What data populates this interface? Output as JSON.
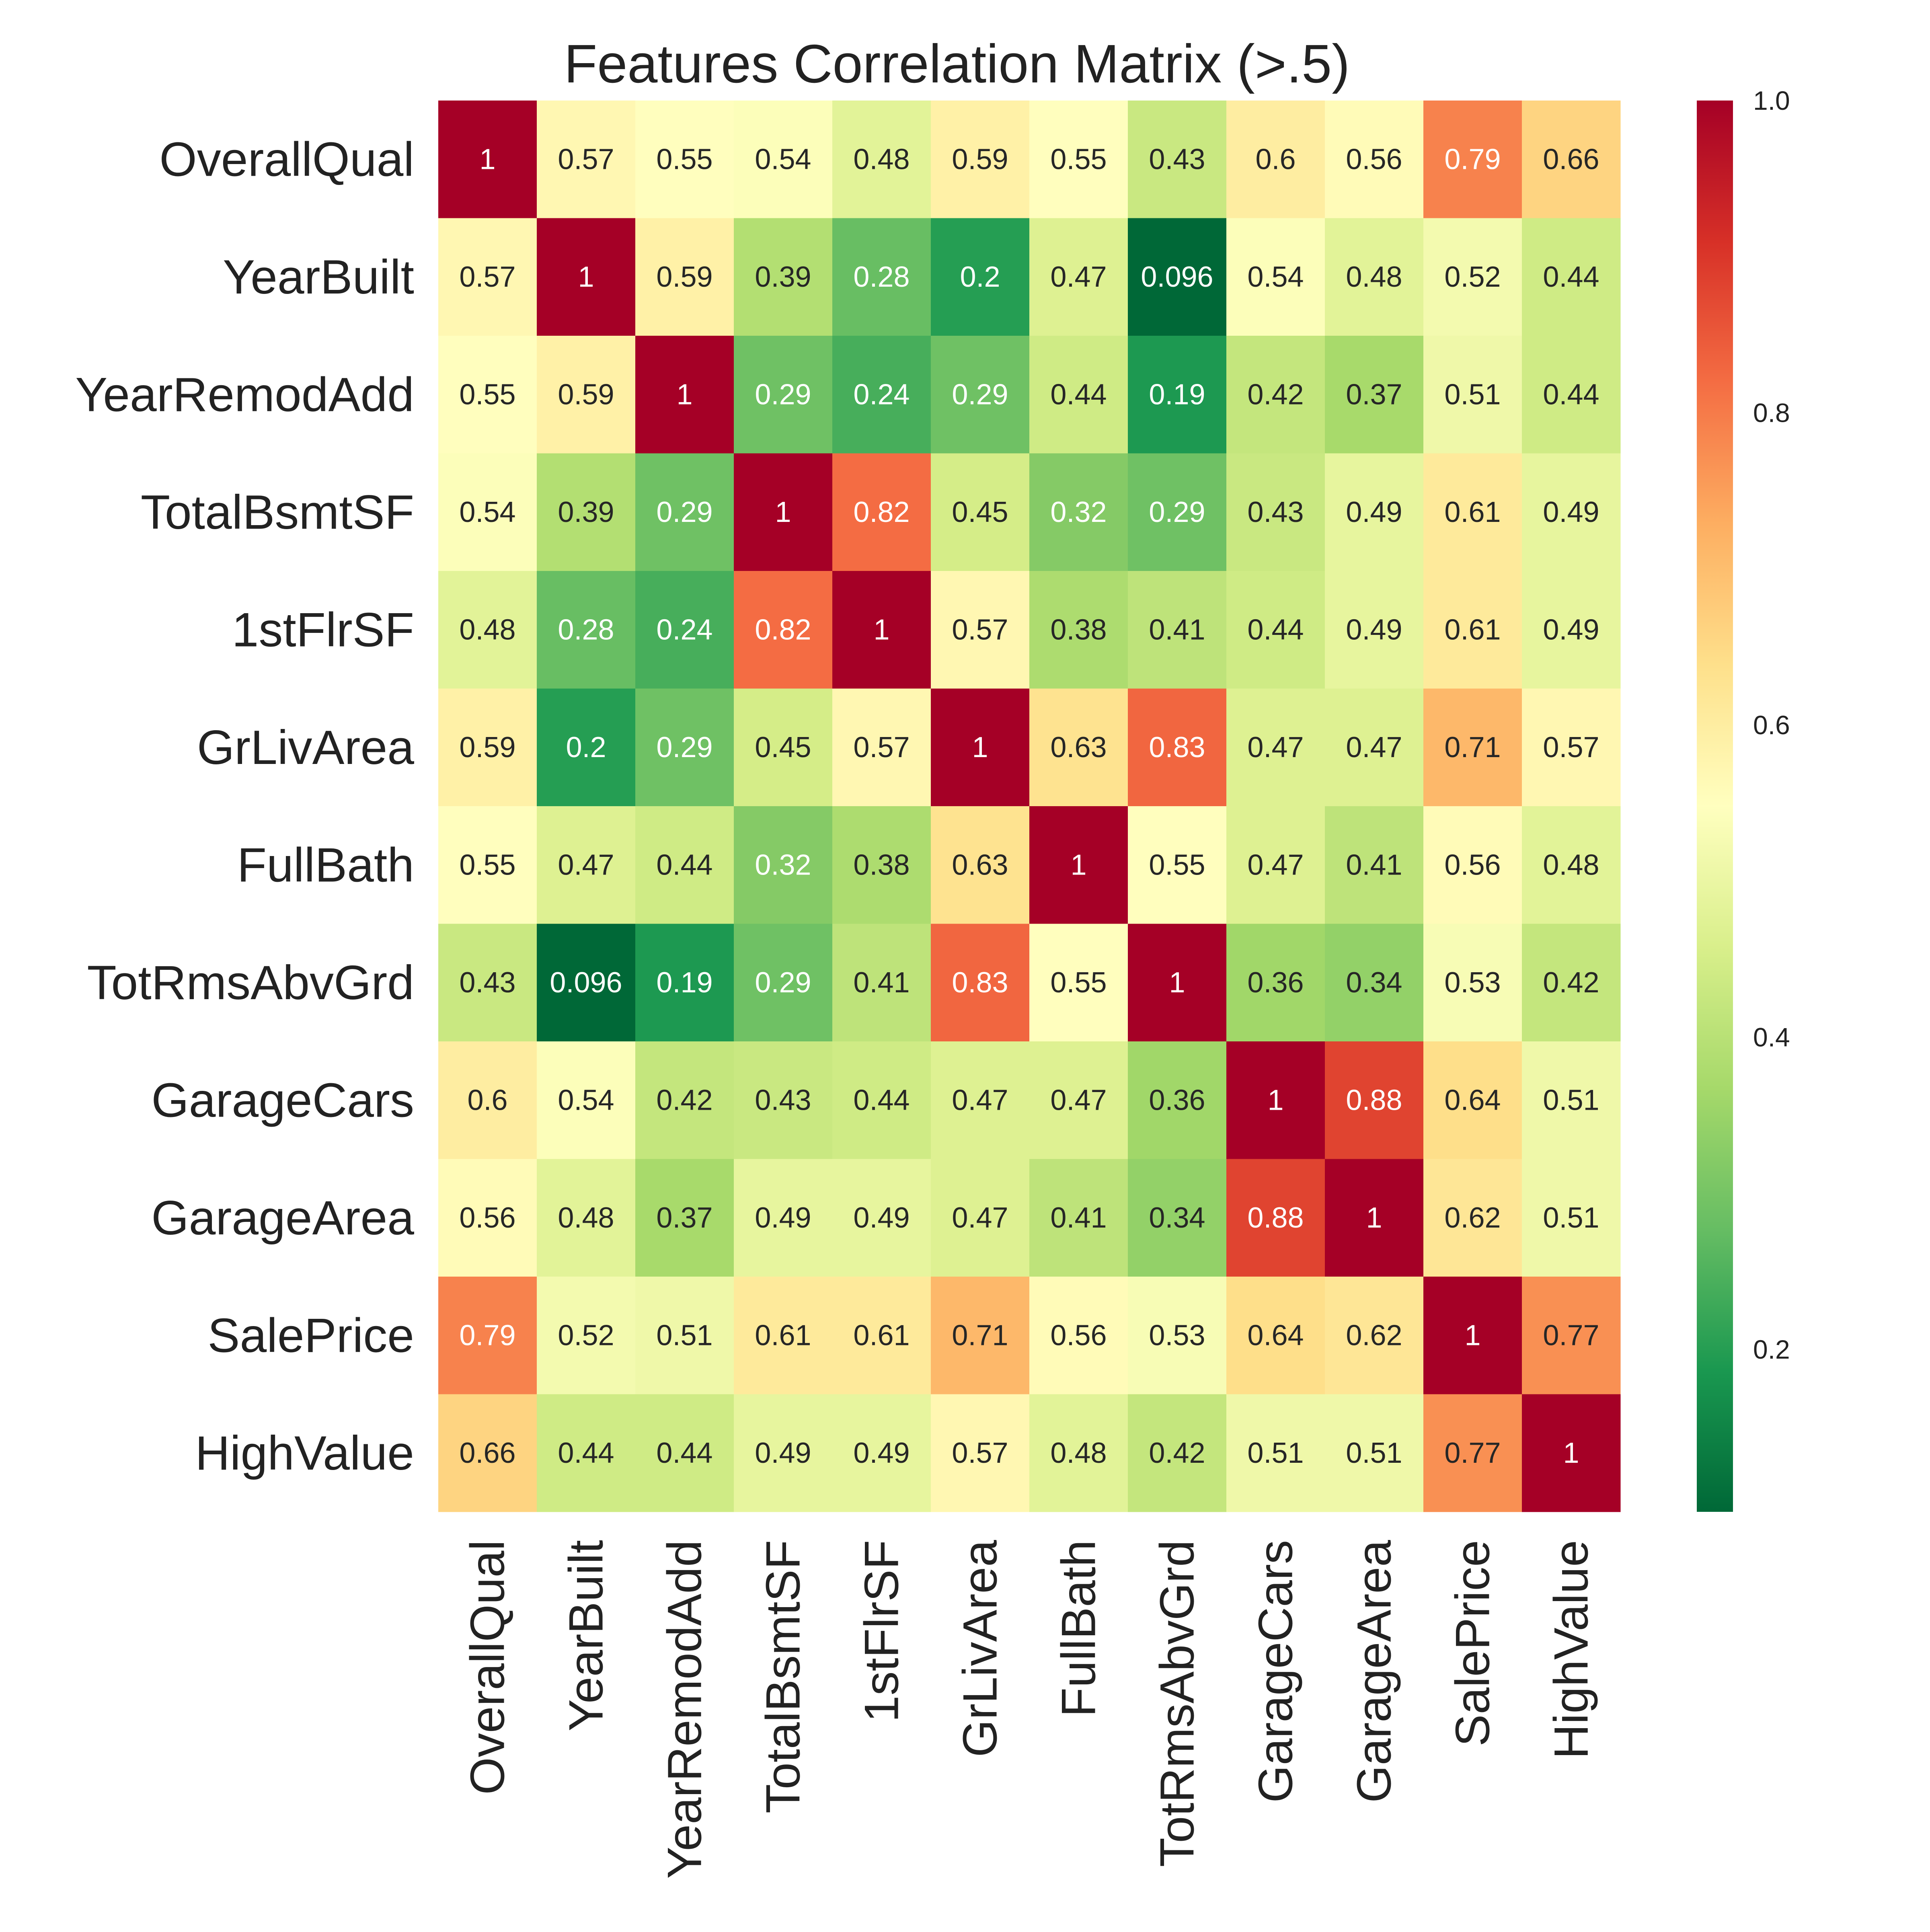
{
  "chart_data": {
    "type": "heatmap",
    "title": "Features Correlation Matrix (>.5)",
    "row_labels": [
      "OverallQual",
      "YearBuilt",
      "YearRemodAdd",
      "TotalBsmtSF",
      "1stFlrSF",
      "GrLivArea",
      "FullBath",
      "TotRmsAbvGrd",
      "GarageCars",
      "GarageArea",
      "SalePrice",
      "HighValue"
    ],
    "col_labels": [
      "OverallQual",
      "YearBuilt",
      "YearRemodAdd",
      "TotalBsmtSF",
      "1stFlrSF",
      "GrLivArea",
      "FullBath",
      "TotRmsAbvGrd",
      "GarageCars",
      "GarageArea",
      "SalePrice",
      "HighValue"
    ],
    "values": [
      [
        1,
        0.57,
        0.55,
        0.54,
        0.48,
        0.59,
        0.55,
        0.43,
        0.6,
        0.56,
        0.79,
        0.66
      ],
      [
        0.57,
        1,
        0.59,
        0.39,
        0.28,
        0.2,
        0.47,
        0.096,
        0.54,
        0.48,
        0.52,
        0.44
      ],
      [
        0.55,
        0.59,
        1,
        0.29,
        0.24,
        0.29,
        0.44,
        0.19,
        0.42,
        0.37,
        0.51,
        0.44
      ],
      [
        0.54,
        0.39,
        0.29,
        1,
        0.82,
        0.45,
        0.32,
        0.29,
        0.43,
        0.49,
        0.61,
        0.49
      ],
      [
        0.48,
        0.28,
        0.24,
        0.82,
        1,
        0.57,
        0.38,
        0.41,
        0.44,
        0.49,
        0.61,
        0.49
      ],
      [
        0.59,
        0.2,
        0.29,
        0.45,
        0.57,
        1,
        0.63,
        0.83,
        0.47,
        0.47,
        0.71,
        0.57
      ],
      [
        0.55,
        0.47,
        0.44,
        0.32,
        0.38,
        0.63,
        1,
        0.55,
        0.47,
        0.41,
        0.56,
        0.48
      ],
      [
        0.43,
        0.096,
        0.19,
        0.29,
        0.41,
        0.83,
        0.55,
        1,
        0.36,
        0.34,
        0.53,
        0.42
      ],
      [
        0.6,
        0.54,
        0.42,
        0.43,
        0.44,
        0.47,
        0.47,
        0.36,
        1,
        0.88,
        0.64,
        0.51
      ],
      [
        0.56,
        0.48,
        0.37,
        0.49,
        0.49,
        0.47,
        0.41,
        0.34,
        0.88,
        1,
        0.62,
        0.51
      ],
      [
        0.79,
        0.52,
        0.51,
        0.61,
        0.61,
        0.71,
        0.56,
        0.53,
        0.64,
        0.62,
        1,
        0.77
      ],
      [
        0.66,
        0.44,
        0.44,
        0.49,
        0.49,
        0.57,
        0.48,
        0.42,
        0.51,
        0.51,
        0.77,
        1
      ]
    ],
    "colormap": "RdYlGn_r",
    "colorbar": {
      "min": 0.096,
      "max": 1.0,
      "ticks": [
        "0.2",
        "0.4",
        "0.6",
        "0.8",
        "1.0"
      ]
    },
    "colormap_stops": [
      "#006837",
      "#1a9850",
      "#66bd63",
      "#a6d96a",
      "#d9ef8b",
      "#ffffbf",
      "#fee08b",
      "#fdae61",
      "#f46d43",
      "#d73027",
      "#a50026"
    ],
    "annotations": true
  }
}
